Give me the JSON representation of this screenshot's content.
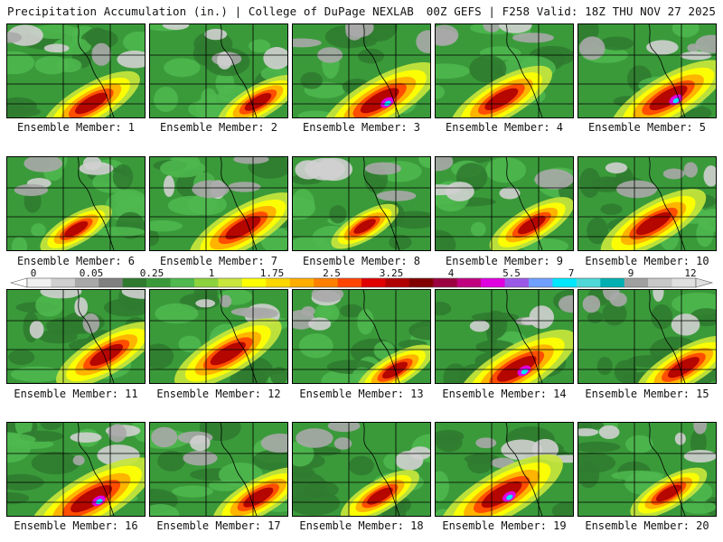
{
  "header": {
    "left": "Precipitation Accumulation (in.) | College of DuPage NEXLAB",
    "right": "00Z GEFS | F258 Valid: 18Z THU NOV 27 2025"
  },
  "members": [
    {
      "label": "Ensemble Member: 1",
      "intensity": 0.62
    },
    {
      "label": "Ensemble Member: 2",
      "intensity": 0.45
    },
    {
      "label": "Ensemble Member: 3",
      "intensity": 0.82
    },
    {
      "label": "Ensemble Member: 4",
      "intensity": 0.66
    },
    {
      "label": "Ensemble Member: 5",
      "intensity": 0.8
    },
    {
      "label": "Ensemble Member: 6",
      "intensity": 0.35
    },
    {
      "label": "Ensemble Member: 7",
      "intensity": 0.72
    },
    {
      "label": "Ensemble Member: 8",
      "intensity": 0.3
    },
    {
      "label": "Ensemble Member: 9",
      "intensity": 0.48
    },
    {
      "label": "Ensemble Member: 10",
      "intensity": 0.7
    },
    {
      "label": "Ensemble Member: 11",
      "intensity": 0.65
    },
    {
      "label": "Ensemble Member: 12",
      "intensity": 0.72
    },
    {
      "label": "Ensemble Member: 13",
      "intensity": 0.4
    },
    {
      "label": "Ensemble Member: 14",
      "intensity": 0.85
    },
    {
      "label": "Ensemble Member: 15",
      "intensity": 0.6
    },
    {
      "label": "Ensemble Member: 16",
      "intensity": 0.92
    },
    {
      "label": "Ensemble Member: 17",
      "intensity": 0.55
    },
    {
      "label": "Ensemble Member: 18",
      "intensity": 0.42
    },
    {
      "label": "Ensemble Member: 19",
      "intensity": 0.88
    },
    {
      "label": "Ensemble Member: 20",
      "intensity": 0.4
    }
  ],
  "colorbar": {
    "labels": [
      "0",
      "0.05",
      "0.25",
      "1",
      "1.75",
      "2.5",
      "3.25",
      "4",
      "5.5",
      "7",
      "9",
      "12"
    ],
    "colors": [
      "#f0f0f0",
      "#d0d0d0",
      "#a8a8a8",
      "#808080",
      "#2f7a2f",
      "#3a9a3a",
      "#4fb84f",
      "#8cd23c",
      "#c8e63c",
      "#ffff00",
      "#ffd700",
      "#ffae00",
      "#ff8000",
      "#ff4500",
      "#e00000",
      "#b00000",
      "#800000",
      "#9b0040",
      "#c0007f",
      "#e000e0",
      "#9b59e8",
      "#6fa0ff",
      "#00e8ff",
      "#4fd8d8",
      "#00b0b0",
      "#a0a0a0",
      "#c8c8c8",
      "#e0e0e0"
    ]
  }
}
